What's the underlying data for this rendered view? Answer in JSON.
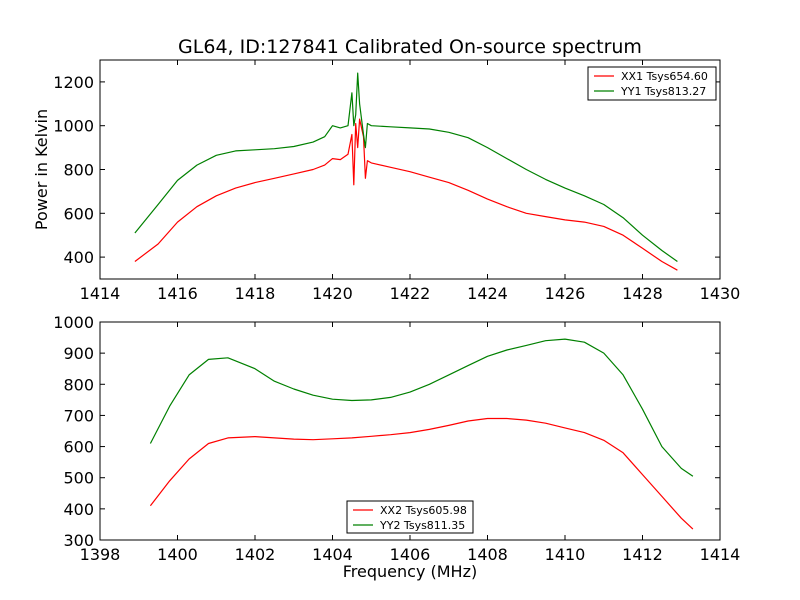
{
  "chart_data": [
    {
      "type": "line",
      "title": "GL64, ID:127841 Calibrated On-source spectrum",
      "xlabel": "",
      "ylabel": "Power in Kelvin",
      "xlim": [
        1414,
        1430
      ],
      "ylim": [
        300,
        1300
      ],
      "xticks": [
        "1414",
        "1416",
        "1418",
        "1420",
        "1422",
        "1424",
        "1426",
        "1428",
        "1430"
      ],
      "yticks": [
        "400",
        "600",
        "800",
        "1000",
        "1200"
      ],
      "legend_position": "top-right",
      "series": [
        {
          "name": "XX1 Tsys654.60",
          "color": "#ff0000",
          "x": [
            1414.9,
            1415.5,
            1416,
            1416.5,
            1417,
            1417.5,
            1418,
            1418.5,
            1419,
            1419.5,
            1419.8,
            1420.0,
            1420.2,
            1420.4,
            1420.5,
            1420.55,
            1420.6,
            1420.65,
            1420.7,
            1420.8,
            1420.85,
            1420.9,
            1421.0,
            1421.5,
            1422,
            1422.5,
            1423,
            1423.5,
            1424,
            1424.5,
            1425,
            1425.5,
            1426,
            1426.5,
            1427,
            1427.5,
            1428,
            1428.5,
            1428.9
          ],
          "y": [
            380,
            460,
            560,
            630,
            680,
            715,
            740,
            760,
            780,
            800,
            820,
            850,
            845,
            870,
            960,
            730,
            1010,
            900,
            1030,
            950,
            760,
            840,
            830,
            810,
            790,
            765,
            740,
            705,
            665,
            630,
            600,
            585,
            570,
            560,
            540,
            500,
            440,
            380,
            340
          ]
        },
        {
          "name": "YY1 Tsys813.27",
          "color": "#008000",
          "x": [
            1414.9,
            1415.5,
            1416,
            1416.5,
            1417,
            1417.5,
            1418,
            1418.5,
            1419,
            1419.5,
            1419.8,
            1420.0,
            1420.2,
            1420.4,
            1420.5,
            1420.55,
            1420.6,
            1420.65,
            1420.7,
            1420.8,
            1420.85,
            1420.9,
            1421.0,
            1421.5,
            1422,
            1422.5,
            1423,
            1423.5,
            1424,
            1424.5,
            1425,
            1425.5,
            1426,
            1426.5,
            1427,
            1427.5,
            1428,
            1428.5,
            1428.9
          ],
          "y": [
            510,
            640,
            750,
            820,
            865,
            885,
            890,
            895,
            905,
            925,
            950,
            1000,
            990,
            1000,
            1150,
            1000,
            1050,
            1240,
            1100,
            960,
            900,
            1010,
            1000,
            995,
            990,
            985,
            970,
            945,
            900,
            850,
            800,
            755,
            715,
            680,
            640,
            580,
            500,
            430,
            380
          ]
        }
      ]
    },
    {
      "type": "line",
      "title": "",
      "xlabel": "Frequency (MHz)",
      "ylabel": "",
      "xlim": [
        1398,
        1414
      ],
      "ylim": [
        300,
        1000
      ],
      "xticks": [
        "1398",
        "1400",
        "1402",
        "1404",
        "1406",
        "1408",
        "1410",
        "1412",
        "1414"
      ],
      "yticks": [
        "300",
        "400",
        "500",
        "600",
        "700",
        "800",
        "900",
        "1000"
      ],
      "legend_position": "bottom-center",
      "series": [
        {
          "name": "XX2 Tsys605.98",
          "color": "#ff0000",
          "x": [
            1399.3,
            1399.8,
            1400.3,
            1400.8,
            1401.3,
            1402,
            1402.5,
            1403,
            1403.5,
            1404,
            1404.5,
            1405,
            1405.5,
            1406,
            1406.5,
            1407,
            1407.5,
            1408,
            1408.5,
            1409,
            1409.5,
            1410,
            1410.5,
            1411,
            1411.5,
            1412,
            1412.5,
            1413,
            1413.3
          ],
          "y": [
            410,
            490,
            560,
            610,
            628,
            632,
            628,
            624,
            622,
            625,
            628,
            633,
            638,
            645,
            655,
            668,
            682,
            690,
            690,
            685,
            675,
            660,
            645,
            620,
            580,
            510,
            440,
            370,
            335
          ]
        },
        {
          "name": "YY2 Tsys811.35",
          "color": "#008000",
          "x": [
            1399.3,
            1399.8,
            1400.3,
            1400.8,
            1401.3,
            1402,
            1402.5,
            1403,
            1403.5,
            1404,
            1404.5,
            1405,
            1405.5,
            1406,
            1406.5,
            1407,
            1407.5,
            1408,
            1408.5,
            1409,
            1409.5,
            1410,
            1410.5,
            1411,
            1411.5,
            1412,
            1412.5,
            1413,
            1413.3
          ],
          "y": [
            610,
            730,
            830,
            880,
            885,
            850,
            810,
            785,
            765,
            752,
            748,
            750,
            758,
            775,
            800,
            830,
            860,
            890,
            910,
            925,
            940,
            945,
            935,
            900,
            830,
            720,
            600,
            530,
            505
          ]
        }
      ]
    }
  ]
}
